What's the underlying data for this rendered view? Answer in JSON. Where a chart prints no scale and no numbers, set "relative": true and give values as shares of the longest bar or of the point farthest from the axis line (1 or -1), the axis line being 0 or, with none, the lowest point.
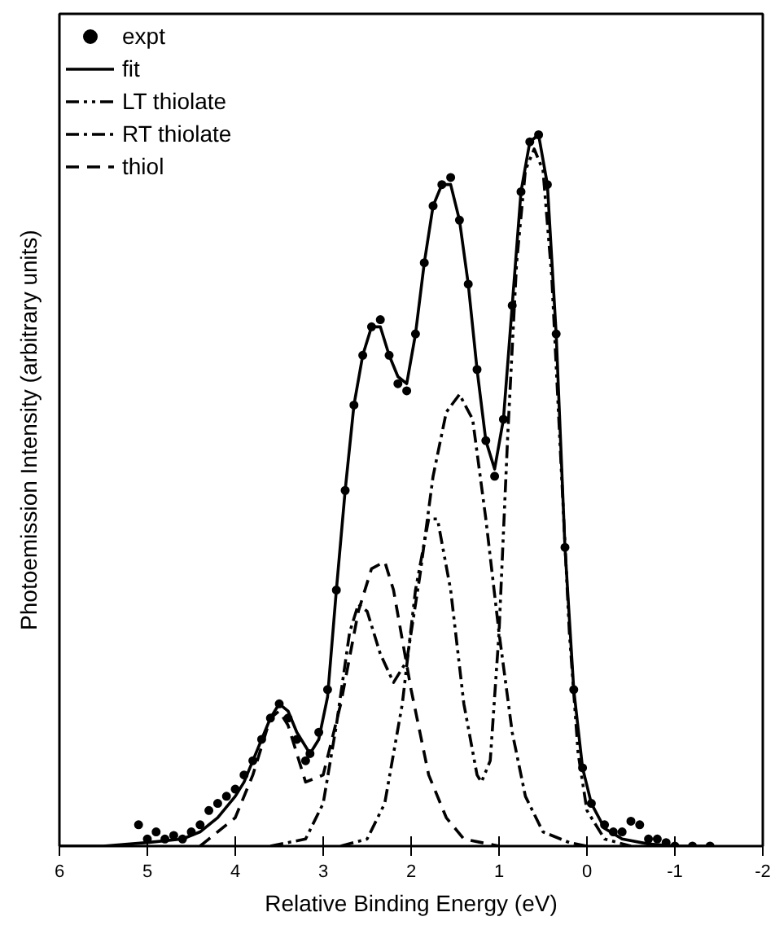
{
  "chart_data": {
    "type": "line",
    "xlabel": "Relative Binding Energy (eV)",
    "ylabel": "Photoemission Intensity (arbitrary units)",
    "relative": true,
    "xlim": [
      6,
      -2
    ],
    "xticks": [
      6,
      5,
      4,
      3,
      2,
      1,
      0,
      -1,
      -2
    ],
    "grid": false,
    "legend": "top left",
    "series": [
      {
        "name": "expt",
        "type": "scatter",
        "marker": "circle",
        "color": "#000000",
        "x": [
          5.1,
          5.0,
          4.9,
          4.8,
          4.7,
          4.6,
          4.5,
          4.4,
          4.3,
          4.2,
          4.1,
          4.0,
          3.9,
          3.8,
          3.7,
          3.6,
          3.5,
          3.4,
          3.3,
          3.2,
          3.15,
          3.05,
          2.95,
          2.85,
          2.75,
          2.65,
          2.55,
          2.45,
          2.35,
          2.25,
          2.15,
          2.05,
          1.95,
          1.85,
          1.75,
          1.65,
          1.55,
          1.45,
          1.35,
          1.25,
          1.15,
          1.05,
          0.95,
          0.85,
          0.75,
          0.65,
          0.55,
          0.45,
          0.35,
          0.25,
          0.15,
          0.05,
          -0.05,
          -0.2,
          -0.3,
          -0.4,
          -0.5,
          -0.6,
          -0.7,
          -0.8,
          -0.9,
          -1.0,
          -1.2,
          -1.4
        ],
        "values": [
          0.03,
          0.01,
          0.02,
          0.01,
          0.015,
          0.01,
          0.02,
          0.03,
          0.05,
          0.06,
          0.07,
          0.08,
          0.1,
          0.12,
          0.15,
          0.18,
          0.2,
          0.18,
          0.15,
          0.12,
          0.13,
          0.16,
          0.22,
          0.36,
          0.5,
          0.62,
          0.69,
          0.73,
          0.74,
          0.69,
          0.65,
          0.64,
          0.72,
          0.82,
          0.9,
          0.93,
          0.94,
          0.88,
          0.79,
          0.67,
          0.57,
          0.52,
          0.6,
          0.76,
          0.92,
          0.99,
          1.0,
          0.93,
          0.72,
          0.42,
          0.22,
          0.11,
          0.06,
          0.03,
          0.02,
          0.02,
          0.035,
          0.03,
          0.01,
          0.01,
          0.005,
          0.0,
          0.0,
          0.0
        ]
      },
      {
        "name": "fit",
        "line_style": "solid",
        "color": "#000000",
        "x": [
          6.0,
          5.5,
          5.0,
          4.6,
          4.4,
          4.2,
          4.0,
          3.9,
          3.8,
          3.7,
          3.6,
          3.5,
          3.4,
          3.3,
          3.15,
          3.05,
          2.95,
          2.85,
          2.75,
          2.65,
          2.55,
          2.45,
          2.35,
          2.25,
          2.15,
          2.05,
          1.95,
          1.85,
          1.75,
          1.65,
          1.55,
          1.45,
          1.35,
          1.25,
          1.15,
          1.05,
          0.95,
          0.85,
          0.75,
          0.65,
          0.55,
          0.45,
          0.35,
          0.25,
          0.15,
          0.05,
          -0.05,
          -0.2,
          -0.4,
          -0.7,
          -1.0,
          -1.4
        ],
        "values": [
          0,
          0,
          0.005,
          0.01,
          0.02,
          0.04,
          0.07,
          0.09,
          0.12,
          0.15,
          0.18,
          0.2,
          0.19,
          0.16,
          0.13,
          0.15,
          0.21,
          0.36,
          0.5,
          0.62,
          0.69,
          0.73,
          0.73,
          0.69,
          0.66,
          0.65,
          0.72,
          0.82,
          0.9,
          0.93,
          0.93,
          0.88,
          0.79,
          0.67,
          0.57,
          0.53,
          0.6,
          0.76,
          0.92,
          0.99,
          1.0,
          0.93,
          0.72,
          0.42,
          0.22,
          0.11,
          0.06,
          0.025,
          0.01,
          0.003,
          0,
          0
        ]
      },
      {
        "name": "LT thiolate",
        "line_style": "dashdotdot",
        "color": "#000000",
        "x": [
          2.8,
          2.5,
          2.3,
          2.1,
          1.95,
          1.8,
          1.7,
          1.55,
          1.4,
          1.25,
          1.2,
          1.1,
          1.0,
          0.9,
          0.8,
          0.7,
          0.6,
          0.5,
          0.4,
          0.3,
          0.2,
          0.1,
          0.0,
          -0.2,
          -0.5
        ],
        "values": [
          0,
          0.01,
          0.06,
          0.2,
          0.36,
          0.46,
          0.46,
          0.36,
          0.2,
          0.1,
          0.09,
          0.12,
          0.3,
          0.58,
          0.82,
          0.95,
          0.98,
          0.95,
          0.8,
          0.55,
          0.3,
          0.13,
          0.05,
          0.01,
          0
        ]
      },
      {
        "name": "RT thiolate",
        "line_style": "dashdot",
        "color": "#000000",
        "x": [
          3.6,
          3.2,
          3.0,
          2.85,
          2.7,
          2.6,
          2.5,
          2.35,
          2.2,
          2.05,
          1.9,
          1.75,
          1.6,
          1.45,
          1.3,
          1.15,
          1.0,
          0.85,
          0.7,
          0.5,
          0.2,
          0.0
        ],
        "values": [
          0,
          0.01,
          0.06,
          0.17,
          0.3,
          0.34,
          0.33,
          0.27,
          0.23,
          0.26,
          0.38,
          0.52,
          0.61,
          0.635,
          0.6,
          0.46,
          0.3,
          0.16,
          0.07,
          0.02,
          0.005,
          0
        ]
      },
      {
        "name": "thiol",
        "line_style": "dashed",
        "color": "#000000",
        "x": [
          4.4,
          4.0,
          3.8,
          3.6,
          3.5,
          3.4,
          3.2,
          3.0,
          2.8,
          2.6,
          2.45,
          2.3,
          2.2,
          2.0,
          1.8,
          1.6,
          1.4,
          1.0
        ],
        "values": [
          0,
          0.04,
          0.1,
          0.18,
          0.19,
          0.17,
          0.09,
          0.1,
          0.2,
          0.33,
          0.39,
          0.4,
          0.36,
          0.22,
          0.1,
          0.04,
          0.01,
          0
        ]
      }
    ]
  }
}
